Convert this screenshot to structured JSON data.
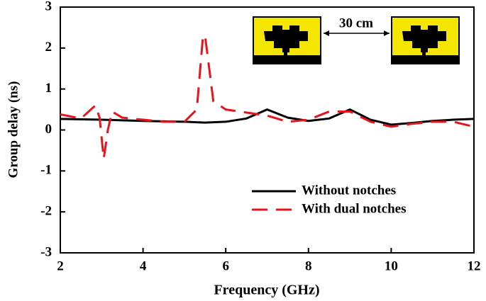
{
  "chart_data": {
    "type": "line",
    "xlabel": "Frequency (GHz)",
    "ylabel": "Group delay (ns)",
    "annotation": "30 cm",
    "xlim": [
      2,
      12
    ],
    "xticks": [
      2,
      4,
      6,
      8,
      10,
      12
    ],
    "ylim": [
      -3,
      3
    ],
    "yticks": [
      -3,
      -2,
      -1,
      0,
      1,
      2,
      3
    ],
    "legend": "lower-right",
    "series": [
      {
        "name": "Without notches",
        "color": "#000000",
        "dash": false,
        "x": [
          2,
          3,
          4,
          5,
          5.5,
          6,
          6.5,
          7,
          7.5,
          8,
          8.5,
          9,
          9.5,
          10,
          10.5,
          11,
          11.5,
          12
        ],
        "values": [
          0.27,
          0.25,
          0.22,
          0.2,
          0.18,
          0.2,
          0.28,
          0.5,
          0.3,
          0.22,
          0.28,
          0.5,
          0.25,
          0.13,
          0.17,
          0.22,
          0.25,
          0.27
        ]
      },
      {
        "name": "With dual notches",
        "color": "#e8141c",
        "dash": true,
        "x": [
          2,
          2.5,
          2.85,
          2.95,
          3.05,
          3.15,
          3.25,
          3.5,
          4,
          4.5,
          5,
          5.3,
          5.45,
          5.5,
          5.7,
          6,
          7,
          7.5,
          8,
          8.5,
          9,
          9.5,
          10,
          10.5,
          11,
          11.5,
          12
        ],
        "values": [
          0.38,
          0.28,
          0.6,
          0.3,
          -0.7,
          0.0,
          0.45,
          0.3,
          0.25,
          0.2,
          0.2,
          0.5,
          2.3,
          2.3,
          0.7,
          0.5,
          0.35,
          0.2,
          0.25,
          0.45,
          0.45,
          0.2,
          0.08,
          0.15,
          0.2,
          0.2,
          0.08
        ]
      }
    ]
  }
}
